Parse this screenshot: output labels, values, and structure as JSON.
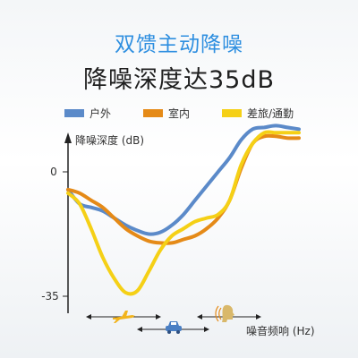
{
  "header": {
    "title": "双馈主动降噪",
    "subtitle": "降噪深度达35dB"
  },
  "icons": [
    "airplane-icon",
    "car-icon",
    "person-speaking-icon"
  ],
  "chart_data": {
    "type": "line",
    "ylabel": "降噪深度 (dB)",
    "xlabel": "噪音频响 (Hz)",
    "y_ticks": [
      "0",
      "-35"
    ],
    "legend_position": "top",
    "grid": false,
    "x": [
      0,
      5,
      10,
      15,
      20,
      25,
      30,
      35,
      40,
      45,
      50,
      55,
      60,
      65,
      70,
      75,
      80,
      85,
      90,
      95,
      100
    ],
    "series": [
      {
        "name": "户外",
        "color": "#5b8ac9",
        "values": [
          -5,
          -9,
          -10,
          -11,
          -13,
          -15,
          -16.5,
          -17.5,
          -17,
          -15,
          -12,
          -8,
          -4,
          0,
          4,
          9,
          12,
          12.5,
          13,
          12.5,
          12
        ]
      },
      {
        "name": "室内",
        "color": "#e58a17",
        "values": [
          -5,
          -6,
          -8,
          -10,
          -13,
          -16,
          -18,
          -19.5,
          -20,
          -20,
          -19,
          -18,
          -16,
          -13,
          -8,
          1,
          8,
          10,
          10,
          9.5,
          9.5
        ]
      },
      {
        "name": "差旅/通勤",
        "color": "#f5d016",
        "values": [
          -6,
          -9,
          -16,
          -24,
          -30,
          -34,
          -33.5,
          -28,
          -22,
          -18,
          -16,
          -14,
          -13,
          -12,
          -8,
          2,
          8,
          11,
          11,
          11,
          11
        ]
      }
    ]
  }
}
